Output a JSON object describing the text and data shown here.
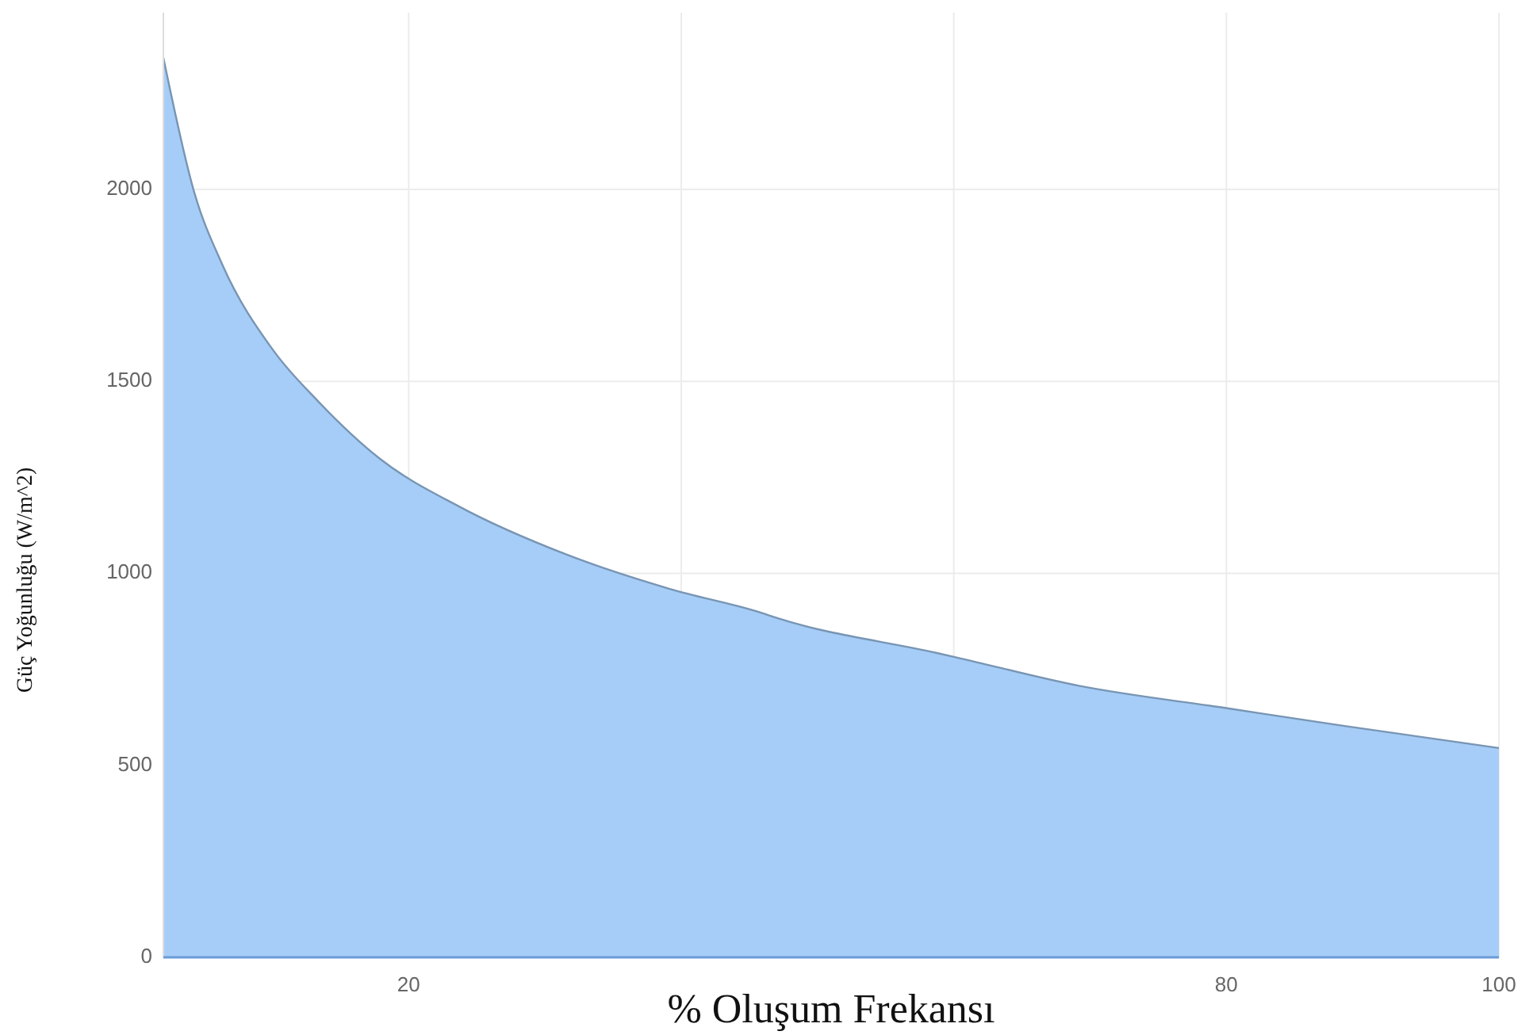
{
  "chart_data": {
    "type": "area",
    "xlabel": "% Oluşum Frekansı",
    "ylabel": "Güç Yoğunluğu (W/m^2)",
    "xlim": [
      2,
      100
    ],
    "ylim": [
      0,
      2460
    ],
    "xticks": [
      20,
      {
        "value": 40,
        "label": null
      },
      {
        "value": 60,
        "label": null
      },
      80,
      100
    ],
    "yticks": [
      0,
      500,
      1000,
      1500,
      2000
    ],
    "grid": true,
    "series": [
      {
        "color": "#a6cdf7",
        "x": [
          2,
          4.3,
          6.3,
          10.1,
          13.3,
          17.9,
          23.7,
          31.5,
          39.2,
          45.9,
          47,
          58.7,
          60.2,
          69.2,
          80,
          88.6,
          100
        ],
        "values": [
          2343,
          1988,
          1806,
          1579,
          1450,
          1298,
          1174,
          1050,
          959,
          897,
          884,
          793,
          781,
          707,
          649,
          603,
          545
        ]
      }
    ]
  }
}
